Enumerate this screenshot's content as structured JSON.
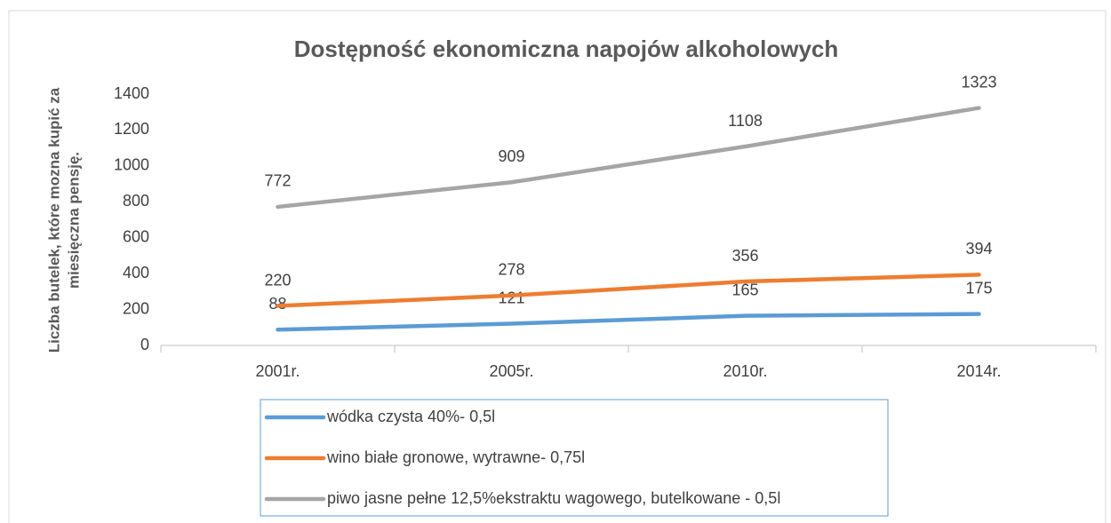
{
  "chart_data": {
    "type": "line",
    "title": "Dostępność ekonomiczna napojów alkoholowych",
    "ylabel": [
      "Liczba butelek, które mozna kupić za",
      "miesięczna pensję."
    ],
    "categories": [
      "2001r.",
      "2005r.",
      "2010r.",
      "2014r."
    ],
    "series": [
      {
        "name": "wódka czysta 40%- 0,5l",
        "color": "#5b9bd5",
        "values": [
          88,
          121,
          165,
          175
        ]
      },
      {
        "name": "wino białe gronowe, wytrawne- 0,75l",
        "color": "#ed7d31",
        "values": [
          220,
          278,
          356,
          394
        ]
      },
      {
        "name": "piwo jasne pełne 12,5%ekstraktu wagowego, butelkowane - 0,5l",
        "color": "#a5a5a5",
        "values": [
          772,
          909,
          1108,
          1323
        ]
      }
    ],
    "ylim": [
      0,
      1400
    ],
    "yticks": [
      0,
      200,
      400,
      600,
      800,
      1000,
      1200,
      1400
    ],
    "grid": false
  }
}
